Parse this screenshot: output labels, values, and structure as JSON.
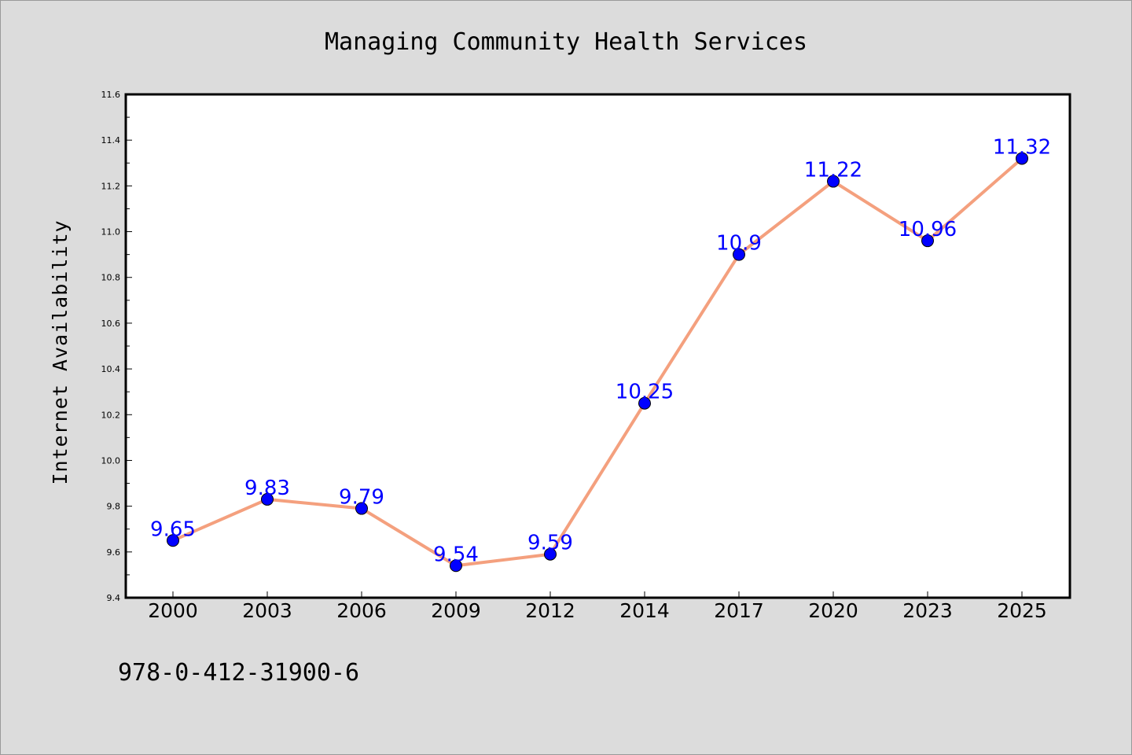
{
  "chart_data": {
    "type": "line",
    "title": "Managing Community Health Services",
    "xlabel": "",
    "ylabel": "Internet Availability",
    "categories": [
      "2000",
      "2003",
      "2006",
      "2009",
      "2012",
      "2014",
      "2017",
      "2020",
      "2023",
      "2025"
    ],
    "series": [
      {
        "values": [
          9.65,
          9.83,
          9.79,
          9.54,
          9.59,
          10.25,
          10.9,
          11.22,
          10.96,
          11.32
        ],
        "labels": [
          "9.65",
          "9.83",
          "9.79",
          "9.54",
          "9.59",
          "10.25",
          "10.9",
          "11.22",
          "10.96",
          "11.32"
        ],
        "line_color": "#f4a07e",
        "marker_color": "#0000ff"
      }
    ],
    "ylim": [
      9.4,
      11.6
    ],
    "yticks": [
      "9.4",
      "9.6",
      "9.8",
      "10.0",
      "10.2",
      "10.4",
      "10.6",
      "10.8",
      "11.0",
      "11.2",
      "11.4",
      "11.6"
    ],
    "grid": false,
    "legend": "none"
  },
  "footer": {
    "isbn": "978-0-412-31900-6"
  },
  "colors": {
    "background": "#dcdcdc",
    "plot_background": "#ffffff",
    "line": "#f4a07e",
    "marker": "#0000ff",
    "data_label": "#0000ff"
  }
}
